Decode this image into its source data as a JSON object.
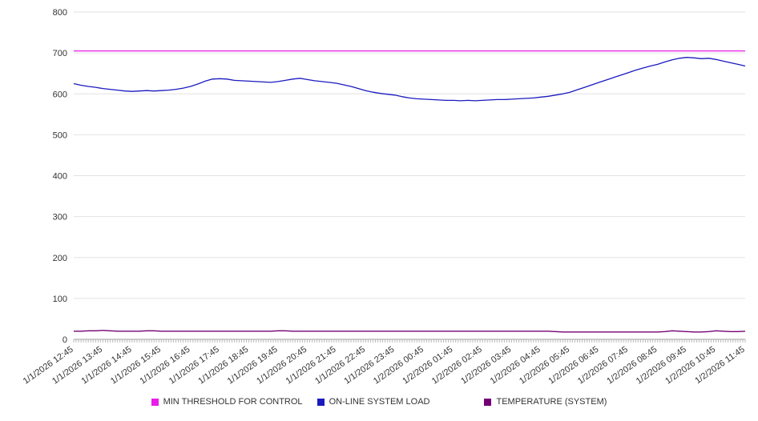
{
  "chart_data": {
    "type": "line",
    "title": "",
    "xlabel": "",
    "ylabel": "",
    "ylim": [
      0,
      800
    ],
    "y_ticks": [
      0,
      100,
      200,
      300,
      400,
      500,
      600,
      700,
      800
    ],
    "grid": true,
    "legend_position": "bottom",
    "points_per_label": 4,
    "x_labels": [
      "1/1/2026 12:45",
      "1/1/2026 13:45",
      "1/1/2026 14:45",
      "1/1/2026 15:45",
      "1/1/2026 16:45",
      "1/1/2026 17:45",
      "1/1/2026 18:45",
      "1/1/2026 19:45",
      "1/1/2026 20:45",
      "1/1/2026 21:45",
      "1/1/2026 22:45",
      "1/1/2026 23:45",
      "1/2/2026 00:45",
      "1/2/2026 01:45",
      "1/2/2026 02:45",
      "1/2/2026 03:45",
      "1/2/2026 04:45",
      "1/2/2026 05:45",
      "1/2/2026 06:45",
      "1/2/2026 07:45",
      "1/2/2026 08:45",
      "1/2/2026 09:45",
      "1/2/2026 10:45",
      "1/2/2026 11:45"
    ],
    "series": [
      {
        "name": "MIN THRESHOLD FOR CONTROL",
        "color": "#e81ee8",
        "constant": 705
      },
      {
        "name": "ON-LINE SYSTEM LOAD",
        "color": "#1a1abf",
        "values": [
          625,
          621,
          618,
          616,
          613,
          611,
          609,
          607,
          606,
          607,
          608,
          607,
          608,
          609,
          611,
          614,
          618,
          624,
          631,
          636,
          637,
          636,
          633,
          632,
          631,
          630,
          629,
          628,
          630,
          633,
          636,
          638,
          635,
          632,
          630,
          628,
          626,
          622,
          618,
          613,
          608,
          604,
          601,
          599,
          597,
          593,
          590,
          588,
          587,
          586,
          585,
          584,
          584,
          583,
          584,
          583,
          584,
          585,
          586,
          586,
          587,
          588,
          589,
          590,
          592,
          594,
          597,
          600,
          604,
          610,
          616,
          622,
          628,
          634,
          640,
          646,
          652,
          658,
          663,
          668,
          672,
          678,
          683,
          687,
          689,
          688,
          686,
          687,
          684,
          680,
          676,
          672,
          668
        ]
      },
      {
        "name": "TEMPERATURE (SYSTEM)",
        "color": "#730073",
        "values": [
          20,
          20,
          21,
          21,
          22,
          21,
          20,
          20,
          20,
          20,
          21,
          21,
          20,
          20,
          20,
          20,
          20,
          20,
          20,
          20,
          20,
          20,
          20,
          20,
          20,
          20,
          20,
          20,
          21,
          21,
          20,
          20,
          20,
          20,
          20,
          20,
          20,
          20,
          20,
          20,
          20,
          20,
          20,
          20,
          20,
          20,
          20,
          20,
          20,
          20,
          20,
          20,
          20,
          20,
          20,
          20,
          20,
          20,
          20,
          20,
          20,
          20,
          20,
          20,
          20,
          20,
          19,
          18,
          18,
          18,
          18,
          18,
          18,
          18,
          18,
          18,
          18,
          18,
          18,
          18,
          18,
          19,
          21,
          20,
          19,
          18,
          18,
          19,
          21,
          20,
          19,
          19,
          20
        ]
      }
    ]
  }
}
